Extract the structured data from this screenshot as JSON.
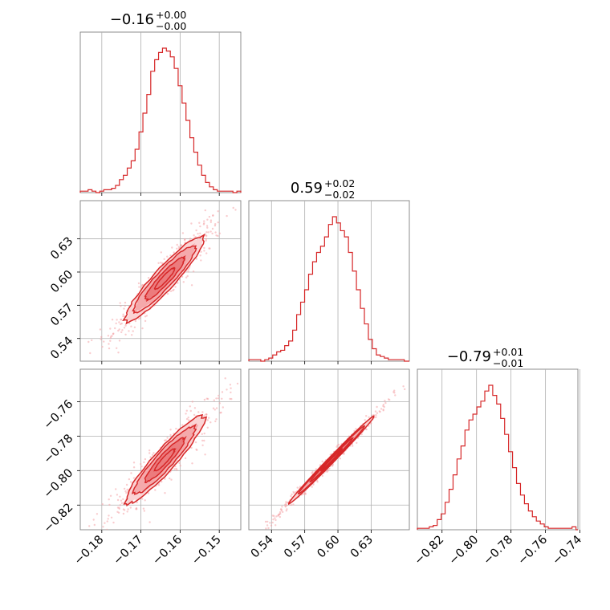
{
  "chart_data": {
    "type": "corner",
    "color": "#d62728",
    "parameters": [
      {
        "title": {
          "median": "−0.16",
          "plus": "+0.00",
          "minus": "−0.00"
        },
        "range": [
          -0.1855,
          -0.1445
        ],
        "ticks": [
          -0.18,
          -0.17,
          -0.16,
          -0.15
        ],
        "tick_labels": [
          "−0.18",
          "−0.17",
          "−0.16",
          "−0.15"
        ],
        "histogram": {
          "start": -0.1855,
          "bin_width": 0.001,
          "counts": [
            1,
            1,
            2,
            1,
            0,
            1,
            2,
            2,
            3,
            5,
            9,
            12,
            17,
            22,
            30,
            42,
            55,
            68,
            84,
            92,
            97,
            100,
            98,
            94,
            86,
            74,
            62,
            50,
            38,
            28,
            19,
            12,
            7,
            4,
            2,
            1,
            1,
            1,
            1,
            0,
            1
          ]
        }
      },
      {
        "title": {
          "median": "0.59",
          "plus": "+0.02",
          "minus": "−0.02"
        },
        "range": [
          0.5195,
          0.6645
        ],
        "ticks": [
          0.54,
          0.57,
          0.6,
          0.63
        ],
        "tick_labels": [
          "0.54",
          "0.57",
          "0.60",
          "0.63"
        ],
        "histogram": {
          "start": 0.5195,
          "bin_width": 0.0036,
          "counts": [
            1,
            1,
            1,
            0,
            1,
            2,
            4,
            6,
            7,
            10,
            13,
            20,
            30,
            38,
            46,
            56,
            64,
            70,
            74,
            80,
            88,
            93,
            89,
            84,
            80,
            70,
            58,
            46,
            34,
            24,
            14,
            8,
            4,
            3,
            2,
            1,
            1,
            1,
            1,
            0
          ]
        }
      },
      {
        "title": {
          "median": "−0.79",
          "plus": "+0.01",
          "minus": "−0.01"
        },
        "range": [
          -0.8343,
          -0.7412
        ],
        "ticks": [
          -0.82,
          -0.8,
          -0.78,
          -0.76,
          -0.74
        ],
        "tick_labels": [
          "−0.82",
          "−0.80",
          "−0.78",
          "−0.76",
          "−0.74"
        ],
        "histogram": {
          "start": -0.8343,
          "bin_width": 0.0023,
          "counts": [
            1,
            1,
            1,
            2,
            3,
            7,
            11,
            19,
            28,
            38,
            49,
            58,
            69,
            76,
            80,
            85,
            89,
            96,
            100,
            93,
            87,
            77,
            66,
            54,
            43,
            32,
            24,
            18,
            13,
            9,
            6,
            4,
            2,
            1,
            1,
            1,
            1,
            1,
            1,
            2,
            0
          ]
        }
      }
    ],
    "correlations": {
      "1_0": 0.93,
      "2_0": 0.93,
      "2_1": 0.995
    }
  }
}
